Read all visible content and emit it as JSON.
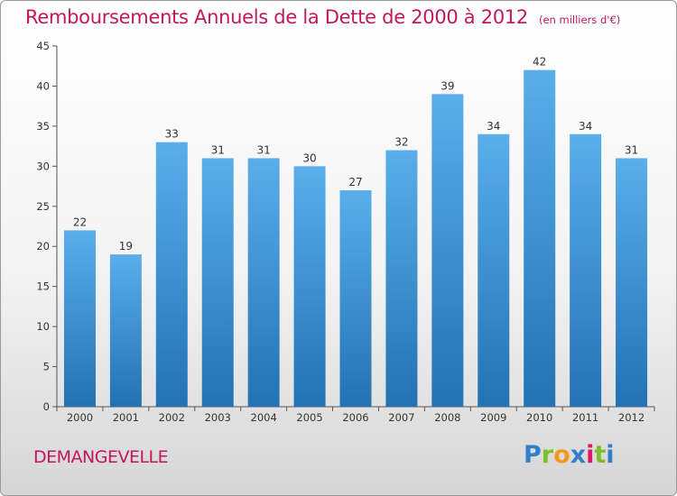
{
  "title": "Remboursements Annuels de la Dette de 2000 à 2012",
  "unit": "(en milliers d'€)",
  "town": "DEMANGEVELLE",
  "logo": {
    "letters": [
      "P",
      "r",
      "o",
      "x",
      "i",
      "t",
      "i"
    ],
    "colors": [
      "#2f7fc9",
      "#7bbf2a",
      "#f29a1f",
      "#2f7fc9",
      "#d81b60",
      "#7bbf2a",
      "#2f7fc9"
    ]
  },
  "colors": {
    "bar_top": "#5aaeea",
    "bar_bottom": "#2272b4",
    "title": "#c2185b"
  },
  "chart_data": {
    "type": "bar",
    "categories": [
      "2000",
      "2001",
      "2002",
      "2003",
      "2004",
      "2005",
      "2006",
      "2007",
      "2008",
      "2009",
      "2010",
      "2011",
      "2012"
    ],
    "values": [
      22,
      19,
      33,
      31,
      31,
      30,
      27,
      32,
      39,
      34,
      42,
      34,
      31
    ],
    "ylim": [
      0,
      45
    ],
    "yticks": [
      0,
      5,
      10,
      15,
      20,
      25,
      30,
      35,
      40,
      45
    ],
    "grid": false,
    "legend": "none"
  }
}
